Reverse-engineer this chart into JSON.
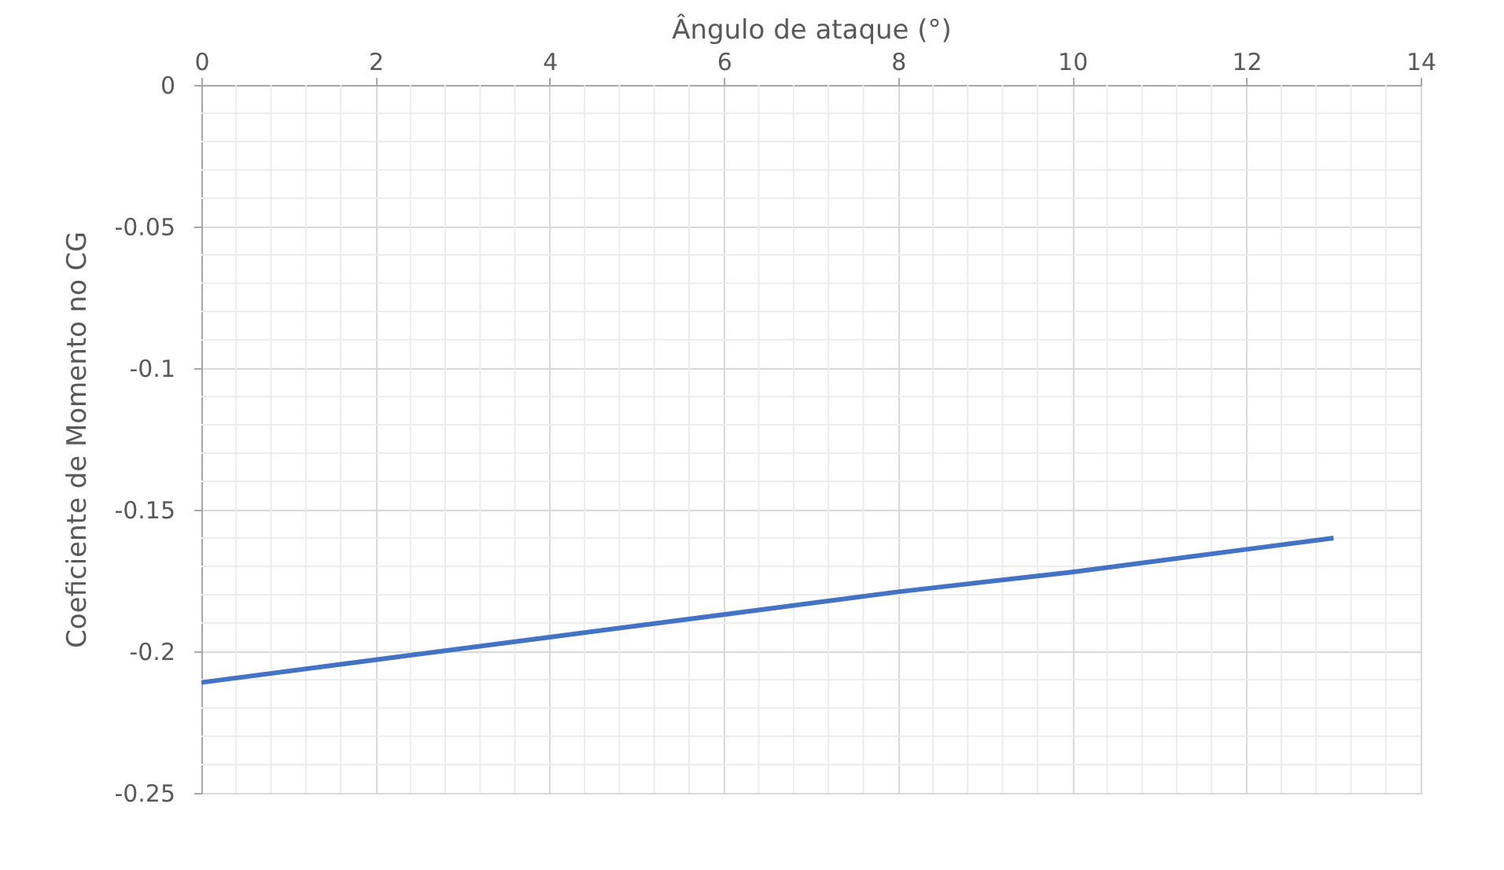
{
  "chart_data": {
    "type": "line",
    "xlabel": "Ângulo de ataque (°)",
    "ylabel": "Coeficiente de Momento no CG",
    "x": [
      0,
      2,
      4,
      6,
      8,
      10,
      12,
      13
    ],
    "series": [
      {
        "color": "#4472c4",
        "values": [
          -0.211,
          -0.203,
          -0.195,
          -0.187,
          -0.179,
          -0.172,
          -0.164,
          -0.16
        ]
      }
    ],
    "xlim": [
      0,
      14
    ],
    "xticks": [
      0,
      2,
      4,
      6,
      8,
      10,
      12,
      14
    ],
    "ylim": [
      -0.25,
      0
    ],
    "yticks": [
      -0.25,
      -0.2,
      -0.15,
      -0.1,
      -0.05,
      0
    ],
    "grid": true,
    "marker": "none",
    "line_style": "solid",
    "legend": false
  }
}
